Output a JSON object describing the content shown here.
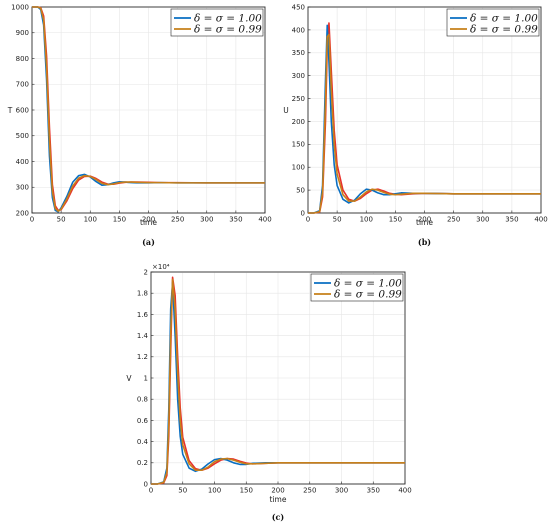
{
  "figure": {
    "legend_entries": [
      "δ = σ = 1.00",
      "δ = σ = 0.99"
    ],
    "colors": {
      "series1": "#0a6fc2",
      "series2": "#c6801a",
      "series3": "#e8302a"
    }
  },
  "chart_data": [
    {
      "id": "a",
      "type": "line",
      "caption": "(a)",
      "ylabel": "T",
      "xlabel": "time",
      "xlim": [
        0,
        400
      ],
      "ylim": [
        200,
        1000
      ],
      "xticks": [
        0,
        50,
        100,
        150,
        200,
        250,
        300,
        350,
        400
      ],
      "yticks": [
        200,
        300,
        400,
        500,
        600,
        700,
        800,
        900,
        1000
      ],
      "grid": true,
      "legend_position": "top-right",
      "series": [
        {
          "name": "δ = σ = 1.00",
          "x": [
            0,
            10,
            15,
            20,
            25,
            30,
            35,
            40,
            45,
            50,
            60,
            70,
            80,
            90,
            100,
            110,
            120,
            130,
            140,
            150,
            160,
            170,
            180,
            200,
            220,
            250,
            300,
            350,
            400
          ],
          "y": [
            1000,
            1000,
            990,
            930,
            720,
            420,
            260,
            210,
            205,
            220,
            265,
            320,
            345,
            350,
            340,
            322,
            308,
            310,
            317,
            321,
            320,
            318,
            317,
            317,
            318,
            317,
            317,
            317,
            317
          ]
        },
        {
          "name": "δ = σ = 0.99",
          "x": [
            0,
            10,
            15,
            20,
            25,
            30,
            35,
            40,
            45,
            50,
            60,
            70,
            80,
            90,
            100,
            110,
            120,
            130,
            140,
            150,
            160,
            170,
            180,
            200,
            220,
            250,
            300,
            350,
            400
          ],
          "y": [
            1000,
            1000,
            995,
            950,
            770,
            480,
            285,
            218,
            207,
            215,
            255,
            305,
            335,
            345,
            342,
            330,
            315,
            310,
            313,
            318,
            320,
            320,
            319,
            318,
            318,
            317,
            317,
            317,
            317
          ]
        },
        {
          "name": "",
          "x": [
            0,
            10,
            15,
            20,
            25,
            30,
            35,
            40,
            45,
            50,
            60,
            70,
            80,
            90,
            100,
            110,
            120,
            130,
            140,
            150,
            160,
            170,
            180,
            200,
            220,
            250,
            300,
            350,
            400
          ],
          "y": [
            1000,
            1000,
            997,
            965,
            810,
            530,
            310,
            228,
            210,
            213,
            248,
            295,
            328,
            342,
            343,
            334,
            320,
            312,
            312,
            316,
            319,
            320,
            320,
            319,
            318,
            318,
            317,
            317,
            317
          ]
        }
      ]
    },
    {
      "id": "b",
      "type": "line",
      "caption": "(b)",
      "ylabel": "U",
      "xlabel": "time",
      "xlim": [
        0,
        400
      ],
      "ylim": [
        0,
        450
      ],
      "xticks": [
        0,
        50,
        100,
        150,
        200,
        250,
        300,
        350,
        400
      ],
      "yticks": [
        0,
        50,
        100,
        150,
        200,
        250,
        300,
        350,
        400,
        450
      ],
      "grid": true,
      "legend_position": "top-right",
      "series": [
        {
          "name": "δ = σ = 1.00",
          "x": [
            0,
            10,
            20,
            25,
            30,
            33,
            36,
            40,
            45,
            50,
            60,
            70,
            80,
            90,
            100,
            110,
            120,
            130,
            140,
            150,
            160,
            180,
            200,
            250,
            300,
            350,
            400
          ],
          "y": [
            0,
            0,
            5,
            60,
            290,
            410,
            330,
            200,
            105,
            60,
            30,
            22,
            28,
            42,
            52,
            50,
            44,
            40,
            40,
            42,
            44,
            43,
            43,
            42,
            42,
            42,
            42
          ]
        },
        {
          "name": "δ = σ = 0.99",
          "x": [
            0,
            10,
            20,
            25,
            30,
            33,
            36,
            40,
            45,
            50,
            60,
            70,
            80,
            90,
            100,
            110,
            120,
            130,
            140,
            150,
            160,
            180,
            200,
            250,
            300,
            350,
            400
          ],
          "y": [
            0,
            0,
            3,
            45,
            240,
            385,
            390,
            270,
            150,
            85,
            40,
            26,
            26,
            35,
            46,
            52,
            50,
            45,
            41,
            40,
            41,
            43,
            43,
            42,
            42,
            42,
            42
          ]
        },
        {
          "name": "",
          "x": [
            0,
            10,
            20,
            25,
            30,
            33,
            36,
            40,
            45,
            50,
            60,
            70,
            80,
            90,
            100,
            110,
            120,
            130,
            140,
            150,
            160,
            180,
            200,
            250,
            300,
            350,
            400
          ],
          "y": [
            0,
            0,
            2,
            35,
            200,
            360,
            415,
            310,
            180,
            105,
            50,
            30,
            26,
            32,
            42,
            50,
            52,
            48,
            43,
            41,
            40,
            42,
            43,
            42,
            42,
            42,
            42
          ]
        }
      ]
    },
    {
      "id": "c",
      "type": "line",
      "caption": "(c)",
      "ylabel": "V",
      "xlabel": "time",
      "xlim": [
        0,
        400
      ],
      "ylim": [
        0,
        20000
      ],
      "scale_label": "×10⁴",
      "xticks": [
        0,
        50,
        100,
        150,
        200,
        250,
        300,
        350,
        400
      ],
      "yticks": [
        0,
        0.2,
        0.4,
        0.6,
        0.8,
        1,
        1.2,
        1.4,
        1.6,
        1.8,
        2
      ],
      "grid": true,
      "legend_position": "top-right",
      "series": [
        {
          "name": "δ = σ = 1.00",
          "x": [
            0,
            10,
            20,
            25,
            28,
            31,
            34,
            38,
            42,
            46,
            50,
            60,
            70,
            80,
            90,
            100,
            110,
            120,
            130,
            140,
            150,
            160,
            180,
            200,
            250,
            300,
            350,
            400
          ],
          "y": [
            0,
            0,
            200,
            1500,
            7000,
            16500,
            19000,
            14000,
            8000,
            4500,
            2800,
            1500,
            1200,
            1400,
            1900,
            2300,
            2400,
            2250,
            2000,
            1850,
            1850,
            1950,
            2000,
            2000,
            2000,
            2000,
            2000,
            2000
          ]
        },
        {
          "name": "δ = σ = 0.99",
          "x": [
            0,
            10,
            20,
            25,
            28,
            31,
            34,
            38,
            42,
            46,
            50,
            60,
            70,
            80,
            90,
            100,
            110,
            120,
            130,
            140,
            150,
            160,
            180,
            200,
            250,
            300,
            350,
            400
          ],
          "y": [
            0,
            0,
            150,
            1100,
            5500,
            14000,
            19300,
            16500,
            10500,
            6000,
            3700,
            1900,
            1300,
            1300,
            1600,
            2100,
            2350,
            2400,
            2250,
            2050,
            1900,
            1900,
            1950,
            2000,
            2000,
            2000,
            2000,
            2000
          ]
        },
        {
          "name": "",
          "x": [
            0,
            10,
            20,
            25,
            28,
            31,
            34,
            38,
            42,
            46,
            50,
            60,
            70,
            80,
            90,
            100,
            110,
            120,
            130,
            140,
            150,
            160,
            180,
            200,
            250,
            300,
            350,
            400
          ],
          "y": [
            0,
            0,
            100,
            800,
            4500,
            12500,
            19500,
            17800,
            12000,
            7200,
            4400,
            2200,
            1450,
            1300,
            1500,
            1900,
            2250,
            2400,
            2350,
            2150,
            1980,
            1900,
            1950,
            2000,
            2000,
            2000,
            2000,
            2000
          ]
        }
      ]
    }
  ]
}
